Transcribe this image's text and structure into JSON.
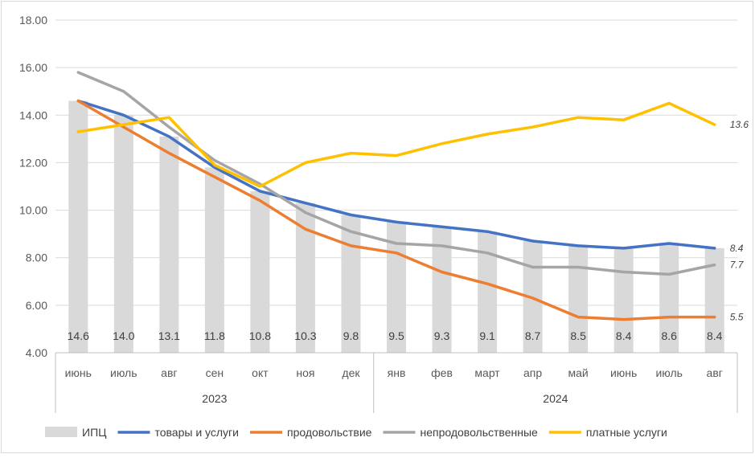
{
  "chart_data": {
    "type": "bar+line",
    "y_tick_labels": [
      "4.00",
      "6.00",
      "8.00",
      "10.00",
      "12.00",
      "14.00",
      "16.00",
      "18.00"
    ],
    "ylim": [
      4,
      18
    ],
    "grid": true,
    "legend_position": "bottom",
    "categories": [
      "июнь",
      "июль",
      "авг",
      "сен",
      "окт",
      "ноя",
      "дек",
      "янв",
      "фев",
      "март",
      "апр",
      "май",
      "июнь",
      "июль",
      "авг"
    ],
    "year_groups": [
      {
        "label": "2023",
        "count": 7
      },
      {
        "label": "2024",
        "count": 8
      }
    ],
    "bar_series": {
      "name": "ИПЦ",
      "color": "#d9d9d9",
      "values": [
        14.6,
        14.0,
        13.1,
        11.8,
        10.8,
        10.3,
        9.8,
        9.5,
        9.3,
        9.1,
        8.7,
        8.5,
        8.4,
        8.6,
        8.4
      ],
      "labels": [
        "14.6",
        "14.0",
        "13.1",
        "11.8",
        "10.8",
        "10.3",
        "9.8",
        "9.5",
        "9.3",
        "9.1",
        "8.7",
        "8.5",
        "8.4",
        "8.6",
        "8.4"
      ]
    },
    "line_series": [
      {
        "name": "товары и услуги",
        "color": "#4472c4",
        "values": [
          14.6,
          14.0,
          13.1,
          11.8,
          10.8,
          10.3,
          9.8,
          9.5,
          9.3,
          9.1,
          8.7,
          8.5,
          8.4,
          8.6,
          8.4
        ],
        "end_label": "8.4"
      },
      {
        "name": "продовольствие",
        "color": "#ed7d31",
        "values": [
          14.6,
          13.5,
          12.4,
          11.4,
          10.4,
          9.2,
          8.5,
          8.2,
          7.4,
          6.9,
          6.3,
          5.5,
          5.4,
          5.5,
          5.5
        ],
        "end_label": "5.5"
      },
      {
        "name": "непродовольственные",
        "color": "#a5a5a5",
        "values": [
          15.8,
          15.0,
          13.5,
          12.1,
          11.1,
          9.9,
          9.1,
          8.6,
          8.5,
          8.2,
          7.6,
          7.6,
          7.4,
          7.3,
          7.7
        ],
        "end_label": "7.7"
      },
      {
        "name": "платные услуги",
        "color": "#ffc000",
        "values": [
          13.3,
          13.6,
          13.9,
          11.9,
          11.0,
          12.0,
          12.4,
          12.3,
          12.8,
          13.2,
          13.5,
          13.9,
          13.8,
          14.5,
          13.6
        ],
        "end_label": "13.6"
      }
    ]
  }
}
